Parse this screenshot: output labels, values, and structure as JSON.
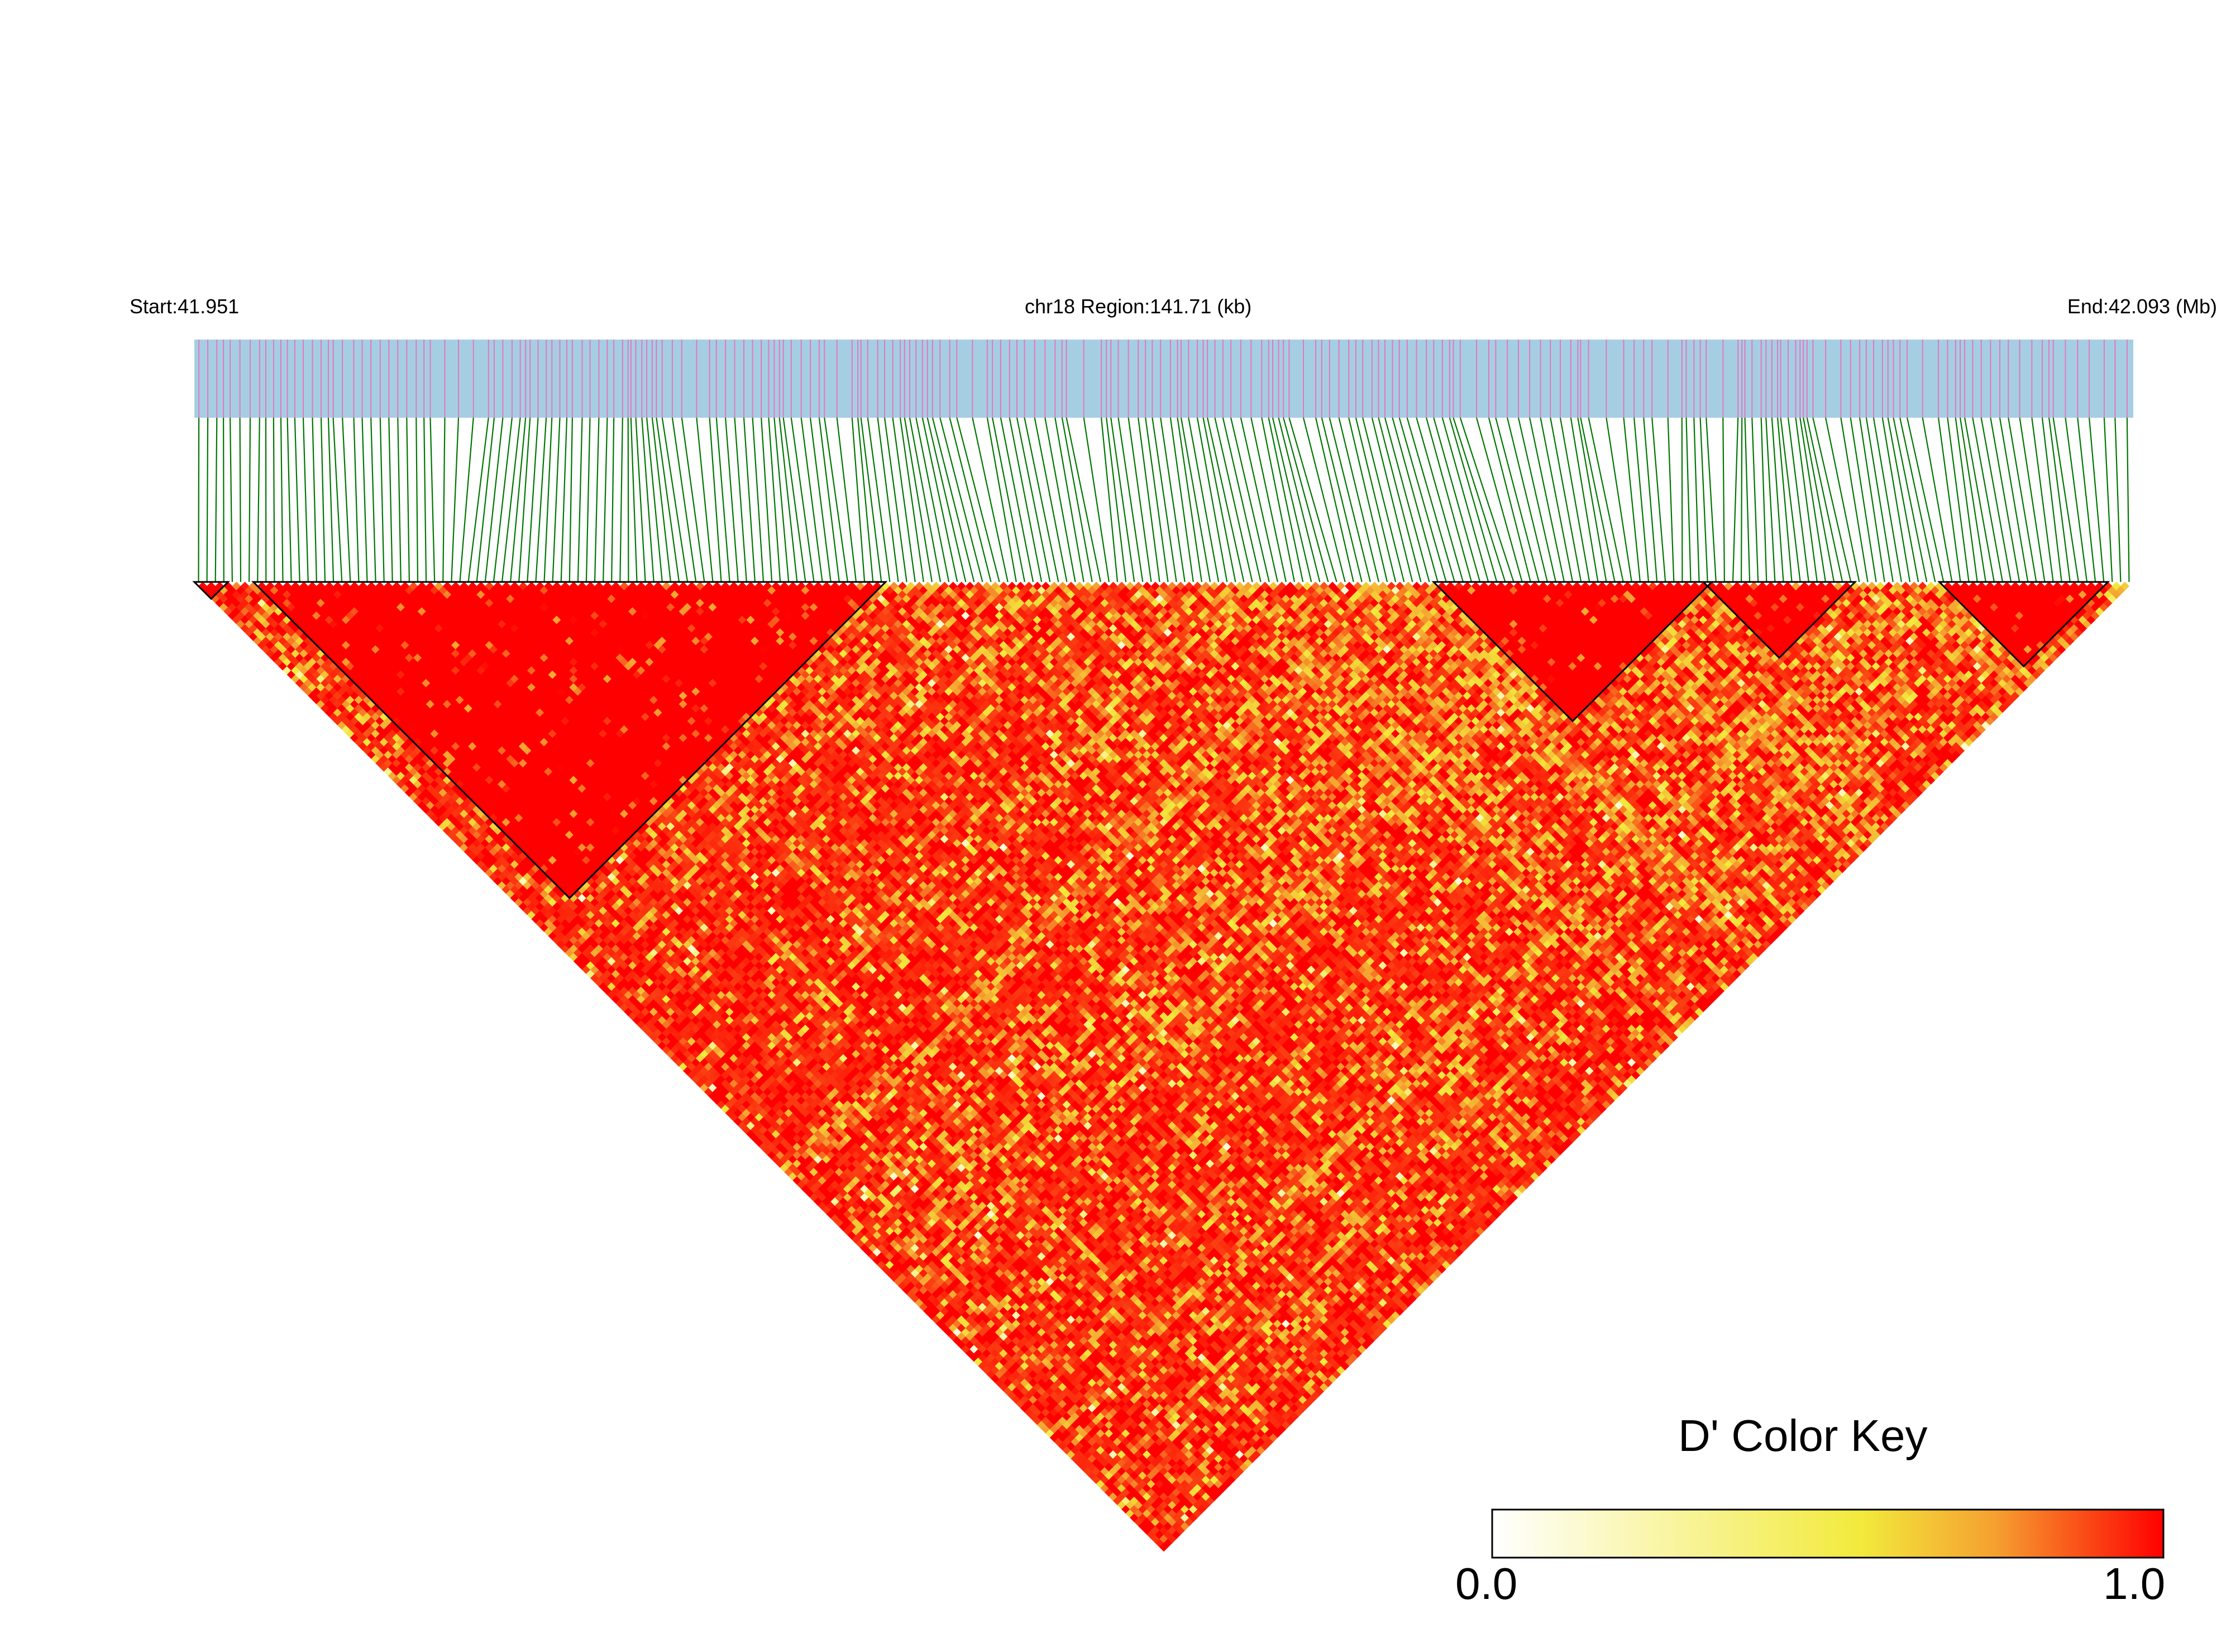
{
  "chart_data": {
    "type": "heatmap",
    "subtype": "LD block triangle (D')",
    "chromosome": "chr18",
    "region_label": "chr18 Region:141.71 (kb)",
    "start_label": "Start:41.951",
    "end_label": "End:42.093 (Mb)",
    "start_mb": 41.951,
    "end_mb": 42.093,
    "region_kb": 141.71,
    "approx_snp_count": 230,
    "color_key": {
      "title": "D' Color Key",
      "min_label": "0.0",
      "max_label": "1.0",
      "min": 0.0,
      "max": 1.0,
      "colors": [
        "#ffffff",
        "#f2ea3c",
        "#f5a030",
        "#ff0000"
      ]
    },
    "background_track_color": "#a6cee3",
    "snp_tick_color": "#e377c2",
    "connector_color": "#007700",
    "block_outline_color": "#000000",
    "ld_blocks_snp_index_ranges": [
      [
        0,
        3
      ],
      [
        7,
        81
      ],
      [
        147,
        179
      ],
      [
        179,
        196
      ],
      [
        207,
        226
      ]
    ]
  }
}
